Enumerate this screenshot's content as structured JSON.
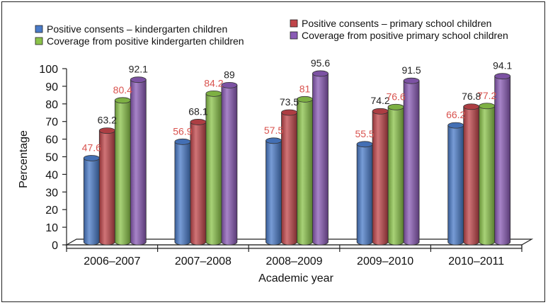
{
  "chart_data": {
    "type": "bar",
    "title": "",
    "xlabel": "Academic year",
    "ylabel": "Percentage",
    "ylim": [
      0,
      100
    ],
    "yticks": [
      0,
      10,
      20,
      30,
      40,
      50,
      60,
      70,
      80,
      90,
      100
    ],
    "categories": [
      "2006–2007",
      "2007–2008",
      "2008–2009",
      "2009–2010",
      "2010–2011"
    ],
    "series": [
      {
        "name": "Positive consents – kindergarten children",
        "color": "#4a7bc8",
        "label_color": "#d9534f",
        "values": [
          47.6,
          56.9,
          57.5,
          55.5,
          66.2
        ],
        "labels": [
          "47.6",
          "56.9",
          "57.5",
          "55.5",
          "66.2"
        ]
      },
      {
        "name": "Positive consents – primary school children",
        "color": "#c0454a",
        "label_color": "#222222",
        "values": [
          63.2,
          68.1,
          73.5,
          74.2,
          76.8
        ],
        "labels": [
          "63.2",
          "68.1",
          "73.5",
          "74.2",
          "76.8"
        ]
      },
      {
        "name": "Coverage from positive kindergarten children",
        "color": "#8bc34a",
        "label_color": "#d9534f",
        "values": [
          80.4,
          84.2,
          81,
          76.6,
          77.2
        ],
        "labels": [
          "80.4",
          "84.2",
          "81",
          "76.6",
          "77.2"
        ]
      },
      {
        "name": "Coverage from positive primary school children",
        "color": "#8a5bb5",
        "label_color": "#222222",
        "values": [
          92.1,
          89,
          95.6,
          91.5,
          94.1
        ],
        "labels": [
          "92.1",
          "89",
          "95.6",
          "91.5",
          "94.1"
        ]
      }
    ],
    "legend_position": "top",
    "grid": false,
    "style": "3d-cylinder"
  }
}
